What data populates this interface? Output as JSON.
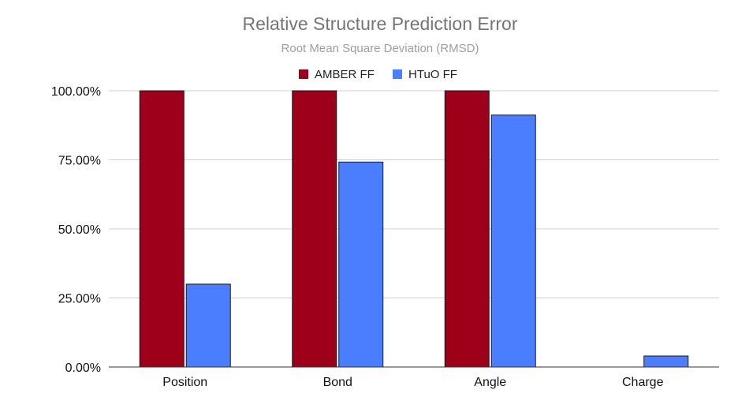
{
  "chart_data": {
    "type": "bar",
    "title": "Relative Structure Prediction Error",
    "subtitle": "Root Mean Square Deviation (RMSD)",
    "categories": [
      "Position",
      "Bond",
      "Angle",
      "Charge"
    ],
    "series": [
      {
        "name": "AMBER FF",
        "color": "#9e0019",
        "values": [
          100,
          100,
          100,
          0
        ]
      },
      {
        "name": "HTuO FF",
        "color": "#4a7dff",
        "values": [
          30,
          74.2,
          91.2,
          4
        ]
      }
    ],
    "ylim": [
      0,
      100
    ],
    "y_ticks": [
      {
        "value": 0,
        "label": "0.00%"
      },
      {
        "value": 25,
        "label": "25.00%"
      },
      {
        "value": 50,
        "label": "50.00%"
      },
      {
        "value": 75,
        "label": "75.00%"
      },
      {
        "value": 100,
        "label": "100.00%"
      }
    ],
    "legend_position": "top-center",
    "grid": true
  }
}
